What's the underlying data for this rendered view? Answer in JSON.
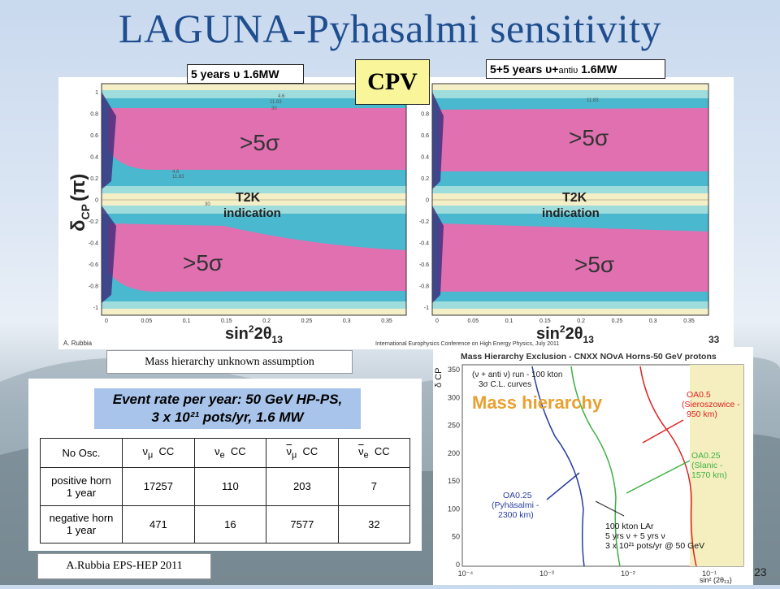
{
  "slide": {
    "title": "LAGUNA-Pyhasalmi sensitivity",
    "page_number": "23",
    "footer_credit": "A.Rubbia EPS-HEP 2011",
    "caption_mh": "Mass hierarchy unknown assumption"
  },
  "cpv_figure": {
    "badge": "CPV",
    "left_header": "5 years υ 1.6MW",
    "right_header_main": "5+5 years υ+",
    "right_header_sub": "antiυ",
    "right_header_tail": " 1.6MW",
    "y_axis_label": "δ",
    "y_axis_sub": "CP",
    "y_axis_unit": "(π)",
    "x_axis_label": "sin",
    "x_axis_sup": "2",
    "x_axis_mid": "2θ",
    "x_axis_sub": "13",
    "region_label": ">5σ",
    "t2k_line1": "T2K",
    "t2k_line2": "indication",
    "author": "A. Rubbia",
    "conference": "International Europhysics Conference on High Energy Physics, July 2011",
    "slide_number": "33",
    "x_ticks": [
      "0",
      "0.05",
      "0.1",
      "0.15",
      "0.2",
      "0.25",
      "0.3",
      "0.35"
    ],
    "y_ticks": [
      "1",
      "0.8",
      "0.6",
      "0.4",
      "0.2",
      "0",
      "-0.2",
      "-0.4",
      "-0.6",
      "-0.8",
      "-1"
    ],
    "contour_labels": [
      "4.6",
      "11.83",
      "30"
    ]
  },
  "event_rate": {
    "header_line1": "Event rate per year: 50 GeV HP-PS,",
    "header_line2": "3 x 10²¹ pots/yr, 1.6 MW",
    "columns": [
      "No Osc.",
      "ν",
      "ν",
      "ν",
      "ν"
    ],
    "column_subs": [
      "",
      "μ",
      "e",
      "μ",
      "e"
    ],
    "column_suffix": "CC",
    "rows": [
      {
        "label_line1": "positive horn",
        "label_line2": "1 year",
        "values": [
          "17257",
          "110",
          "203",
          "7"
        ]
      },
      {
        "label_line1": "negative horn",
        "label_line2": "1 year",
        "values": [
          "471",
          "16",
          "7577",
          "32"
        ]
      }
    ]
  },
  "mh_figure": {
    "title": "Mass Hierarchy Exclusion - CNXX NOvA Horns-50 GeV protons",
    "legend_line1": "(ν + anti ν) run - 100 kton",
    "legend_line2": "3σ C.L. curves",
    "big_label": "Mass hierarchy",
    "y_axis_label": "δ CP",
    "x_axis_label": "sin² (2θ₁₃)",
    "y_ticks": [
      "350",
      "300",
      "250",
      "200",
      "150",
      "100",
      "50",
      "0"
    ],
    "x_ticks": [
      "10⁻⁴",
      "10⁻³",
      "10⁻²",
      "10⁻¹"
    ],
    "oa05": [
      "OA0.5",
      "(Sieroszowice -",
      "950 km)"
    ],
    "oa025s": [
      "OA0.25",
      "(Slanic -",
      "1570 km)"
    ],
    "oa025p": [
      "OA0.25",
      "(Pyhäsalmi -",
      "2300 km)"
    ],
    "lar_lines": [
      "100 kton LAr",
      "5 yrs ν + 5 yrs ν",
      "3 x 10²¹ pots/yr @ 50 GeV"
    ],
    "colors": {
      "blue": "#2a3ea0",
      "green": "#3cb043",
      "red": "#e02020"
    }
  }
}
